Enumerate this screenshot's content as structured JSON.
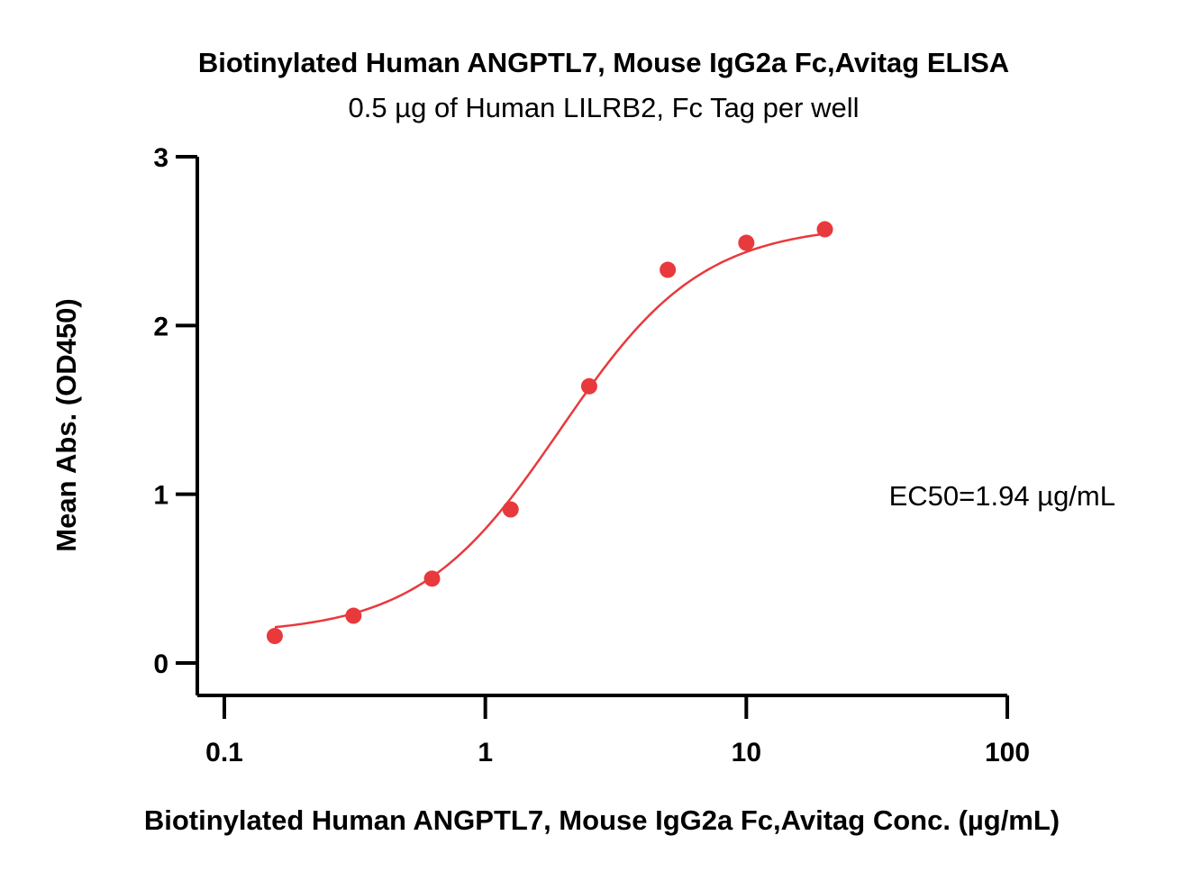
{
  "chart_data": {
    "type": "scatter",
    "title": "Biotinylated Human ANGPTL7, Mouse IgG2a Fc,Avitag ELISA",
    "subtitle": "0.5 µg of Human LILRB2, Fc Tag per well",
    "xlabel": "Biotinylated Human ANGPTL7, Mouse IgG2a Fc,Avitag Conc. (µg/mL)",
    "ylabel": "Mean Abs. (OD450)",
    "x_scale": "log",
    "xlim": [
      0.1,
      100
    ],
    "ylim": [
      0,
      3
    ],
    "x_ticks": [
      0.1,
      1,
      10,
      100
    ],
    "x_tick_labels": [
      "0.1",
      "1",
      "10",
      "100"
    ],
    "y_ticks": [
      0,
      1,
      2,
      3
    ],
    "y_tick_labels": [
      "0",
      "1",
      "2",
      "3"
    ],
    "grid": false,
    "annotation": "EC50=1.94 µg/mL",
    "colors": {
      "series": "#e8393d",
      "axis": "#000000"
    },
    "series": [
      {
        "x": [
          0.156,
          0.3125,
          0.625,
          1.25,
          2.5,
          5,
          10,
          20
        ],
        "y": [
          0.16,
          0.28,
          0.5,
          0.91,
          1.64,
          2.33,
          2.49,
          2.57
        ],
        "fit": {
          "model": "4PL",
          "bottom": 0.17,
          "top": 2.6,
          "ec50": 1.94,
          "hill": 1.6
        }
      }
    ]
  }
}
